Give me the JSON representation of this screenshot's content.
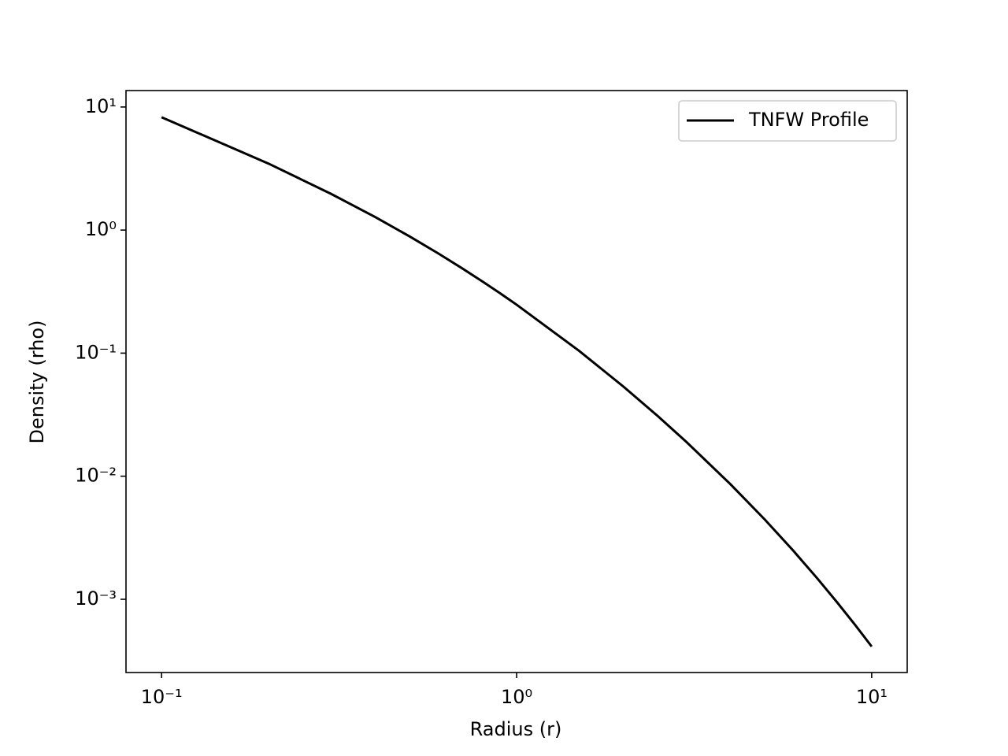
{
  "chart_data": {
    "type": "line",
    "xlabel": "Radius (r)",
    "ylabel": "Density (rho)",
    "x": [
      0.1,
      0.2,
      0.3,
      0.4,
      0.5,
      0.6,
      0.7,
      0.8,
      0.9,
      1,
      1.5,
      2,
      2.5,
      3,
      4,
      5,
      6,
      7,
      8,
      9,
      10
    ],
    "series": [
      {
        "name": "TNFW Profile",
        "color": "#000000",
        "values": [
          8.26,
          3.47,
          1.97,
          1.274,
          0.8867,
          0.6487,
          0.4919,
          0.3833,
          0.3053,
          0.2475,
          0.1043,
          0.05342,
          0.03073,
          0.01911,
          0.008621,
          0.004444,
          0.002501,
          0.001498,
          0.000941,
          0.000614,
          0.000413
        ]
      }
    ],
    "xscale": "log",
    "yscale": "log",
    "xlim": [
      0.0794,
      12.59
    ],
    "ylim": [
      0.000254,
      13.6
    ],
    "xticks": [
      {
        "value": 0.1,
        "label": "10⁻¹"
      },
      {
        "value": 1,
        "label": "10⁰"
      },
      {
        "value": 10,
        "label": "10¹"
      }
    ],
    "yticks": [
      {
        "value": 0.001,
        "label": "10⁻³"
      },
      {
        "value": 0.01,
        "label": "10⁻²"
      },
      {
        "value": 0.1,
        "label": "10⁻¹"
      },
      {
        "value": 1,
        "label": "10⁰"
      },
      {
        "value": 10,
        "label": "10¹"
      }
    ],
    "grid": false,
    "legend": "upper right"
  }
}
